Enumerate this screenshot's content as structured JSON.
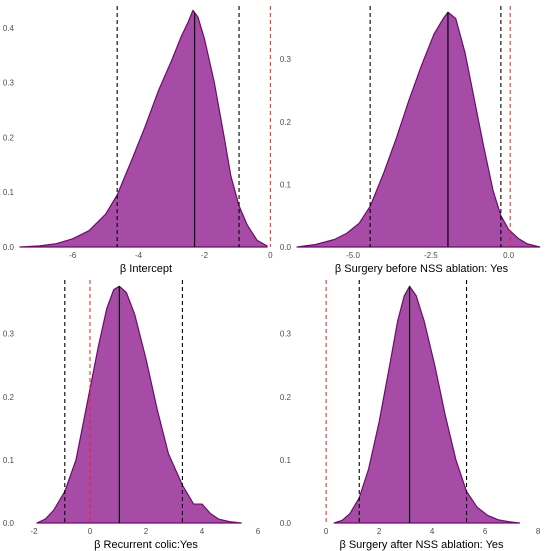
{
  "colors": {
    "density_fill": "#a64ca6",
    "density_line": "#6a0d6a",
    "median_line": "#000000",
    "ci_line": "#000000",
    "zero_line": "#e8231f",
    "tick_text": "#4d4d4d",
    "axis_title": "#000000"
  },
  "chart_data": [
    {
      "type": "area",
      "panel": "top-left",
      "xlabel": "β Intercept",
      "xlim": [
        -7.6,
        0.05
      ],
      "ylim": [
        0,
        0.44
      ],
      "xticks": [
        -6,
        -4,
        -2,
        0
      ],
      "xtick_labels": [
        "-6",
        "-4",
        "-2",
        "0"
      ],
      "yticks": [
        0,
        0.1,
        0.2,
        0.3,
        0.4
      ],
      "ytick_labels": [
        "0.0",
        "0.1",
        "0.2",
        "0.3",
        "0.4"
      ],
      "median": -2.3,
      "ci": [
        -4.65,
        -0.95
      ],
      "reference_line": 0,
      "density": {
        "x": [
          -7.6,
          -7.0,
          -6.5,
          -6.0,
          -5.5,
          -5.0,
          -4.65,
          -4.2,
          -3.8,
          -3.4,
          -3.0,
          -2.7,
          -2.5,
          -2.35,
          -2.2,
          -2.0,
          -1.7,
          -1.4,
          -1.2,
          -0.95,
          -0.7,
          -0.4,
          -0.1
        ],
        "y": [
          0.0,
          0.002,
          0.006,
          0.015,
          0.03,
          0.06,
          0.095,
          0.16,
          0.22,
          0.285,
          0.34,
          0.385,
          0.41,
          0.432,
          0.42,
          0.38,
          0.3,
          0.2,
          0.13,
          0.075,
          0.04,
          0.012,
          0.002
        ]
      }
    },
    {
      "type": "area",
      "panel": "top-right",
      "xlabel": "β Surgery before NSS ablation: Yes",
      "xlim": [
        -6.8,
        1.2
      ],
      "ylim": [
        0,
        0.385
      ],
      "xticks": [
        -5.0,
        -2.5,
        0.0
      ],
      "xtick_labels": [
        "-5.0",
        "-2.5",
        "0.0"
      ],
      "yticks": [
        0,
        0.1,
        0.2,
        0.3
      ],
      "ytick_labels": [
        "0.0",
        "0.1",
        "0.2",
        "0.3"
      ],
      "median": -1.95,
      "ci": [
        -4.45,
        -0.25
      ],
      "reference_line": 0.05,
      "density": {
        "x": [
          -6.8,
          -6.2,
          -5.6,
          -5.2,
          -4.8,
          -4.45,
          -4.0,
          -3.6,
          -3.2,
          -2.8,
          -2.4,
          -2.1,
          -1.95,
          -1.7,
          -1.4,
          -1.1,
          -0.8,
          -0.5,
          -0.25,
          0.0,
          0.3,
          0.6,
          1.0
        ],
        "y": [
          0.0,
          0.004,
          0.012,
          0.022,
          0.038,
          0.065,
          0.12,
          0.175,
          0.235,
          0.29,
          0.34,
          0.365,
          0.375,
          0.365,
          0.31,
          0.235,
          0.16,
          0.09,
          0.05,
          0.028,
          0.014,
          0.005,
          0.0
        ]
      }
    },
    {
      "type": "area",
      "panel": "bottom-left",
      "xlabel": "β Recurrent colic:Yes",
      "xlim": [
        -2.5,
        6.5
      ],
      "ylim": [
        0,
        0.385
      ],
      "xticks": [
        -2,
        0,
        2,
        4,
        6
      ],
      "xtick_labels": [
        "-2",
        "0",
        "2",
        "4",
        "6"
      ],
      "yticks": [
        0,
        0.1,
        0.2,
        0.3
      ],
      "ytick_labels": [
        "0.0",
        "0.1",
        "0.2",
        "0.3"
      ],
      "median": 1.05,
      "ci": [
        -0.9,
        3.3
      ],
      "reference_line": 0,
      "density": {
        "x": [
          -1.9,
          -1.6,
          -1.3,
          -0.9,
          -0.5,
          -0.1,
          0.3,
          0.6,
          0.85,
          1.05,
          1.3,
          1.6,
          2.0,
          2.4,
          2.8,
          3.3,
          3.7,
          4.0,
          4.3,
          4.6,
          5.0,
          5.4
        ],
        "y": [
          0.0,
          0.006,
          0.02,
          0.05,
          0.1,
          0.19,
          0.28,
          0.34,
          0.37,
          0.375,
          0.365,
          0.33,
          0.26,
          0.18,
          0.11,
          0.06,
          0.03,
          0.03,
          0.015,
          0.006,
          0.002,
          0.0
        ]
      }
    },
    {
      "type": "area",
      "panel": "bottom-right",
      "xlabel": "β Surgery after NSS ablation: Yes",
      "xlim": [
        -1.1,
        8.3
      ],
      "ylim": [
        0,
        0.385
      ],
      "xticks": [
        0,
        2,
        4,
        6,
        8
      ],
      "xtick_labels": [
        "0",
        "2",
        "4",
        "6",
        "8"
      ],
      "yticks": [
        0,
        0.1,
        0.2,
        0.3
      ],
      "ytick_labels": [
        "0.0",
        "0.1",
        "0.2",
        "0.3"
      ],
      "median": 3.15,
      "ci": [
        1.25,
        5.3
      ],
      "reference_line": 0,
      "density": {
        "x": [
          0.3,
          0.6,
          0.9,
          1.25,
          1.6,
          2.0,
          2.4,
          2.7,
          2.95,
          3.15,
          3.4,
          3.7,
          4.1,
          4.5,
          4.9,
          5.3,
          5.7,
          6.1,
          6.5,
          6.9,
          7.3
        ],
        "y": [
          0.0,
          0.004,
          0.015,
          0.04,
          0.085,
          0.16,
          0.25,
          0.32,
          0.36,
          0.375,
          0.36,
          0.32,
          0.25,
          0.17,
          0.1,
          0.05,
          0.025,
          0.012,
          0.005,
          0.002,
          0.0
        ]
      }
    }
  ]
}
